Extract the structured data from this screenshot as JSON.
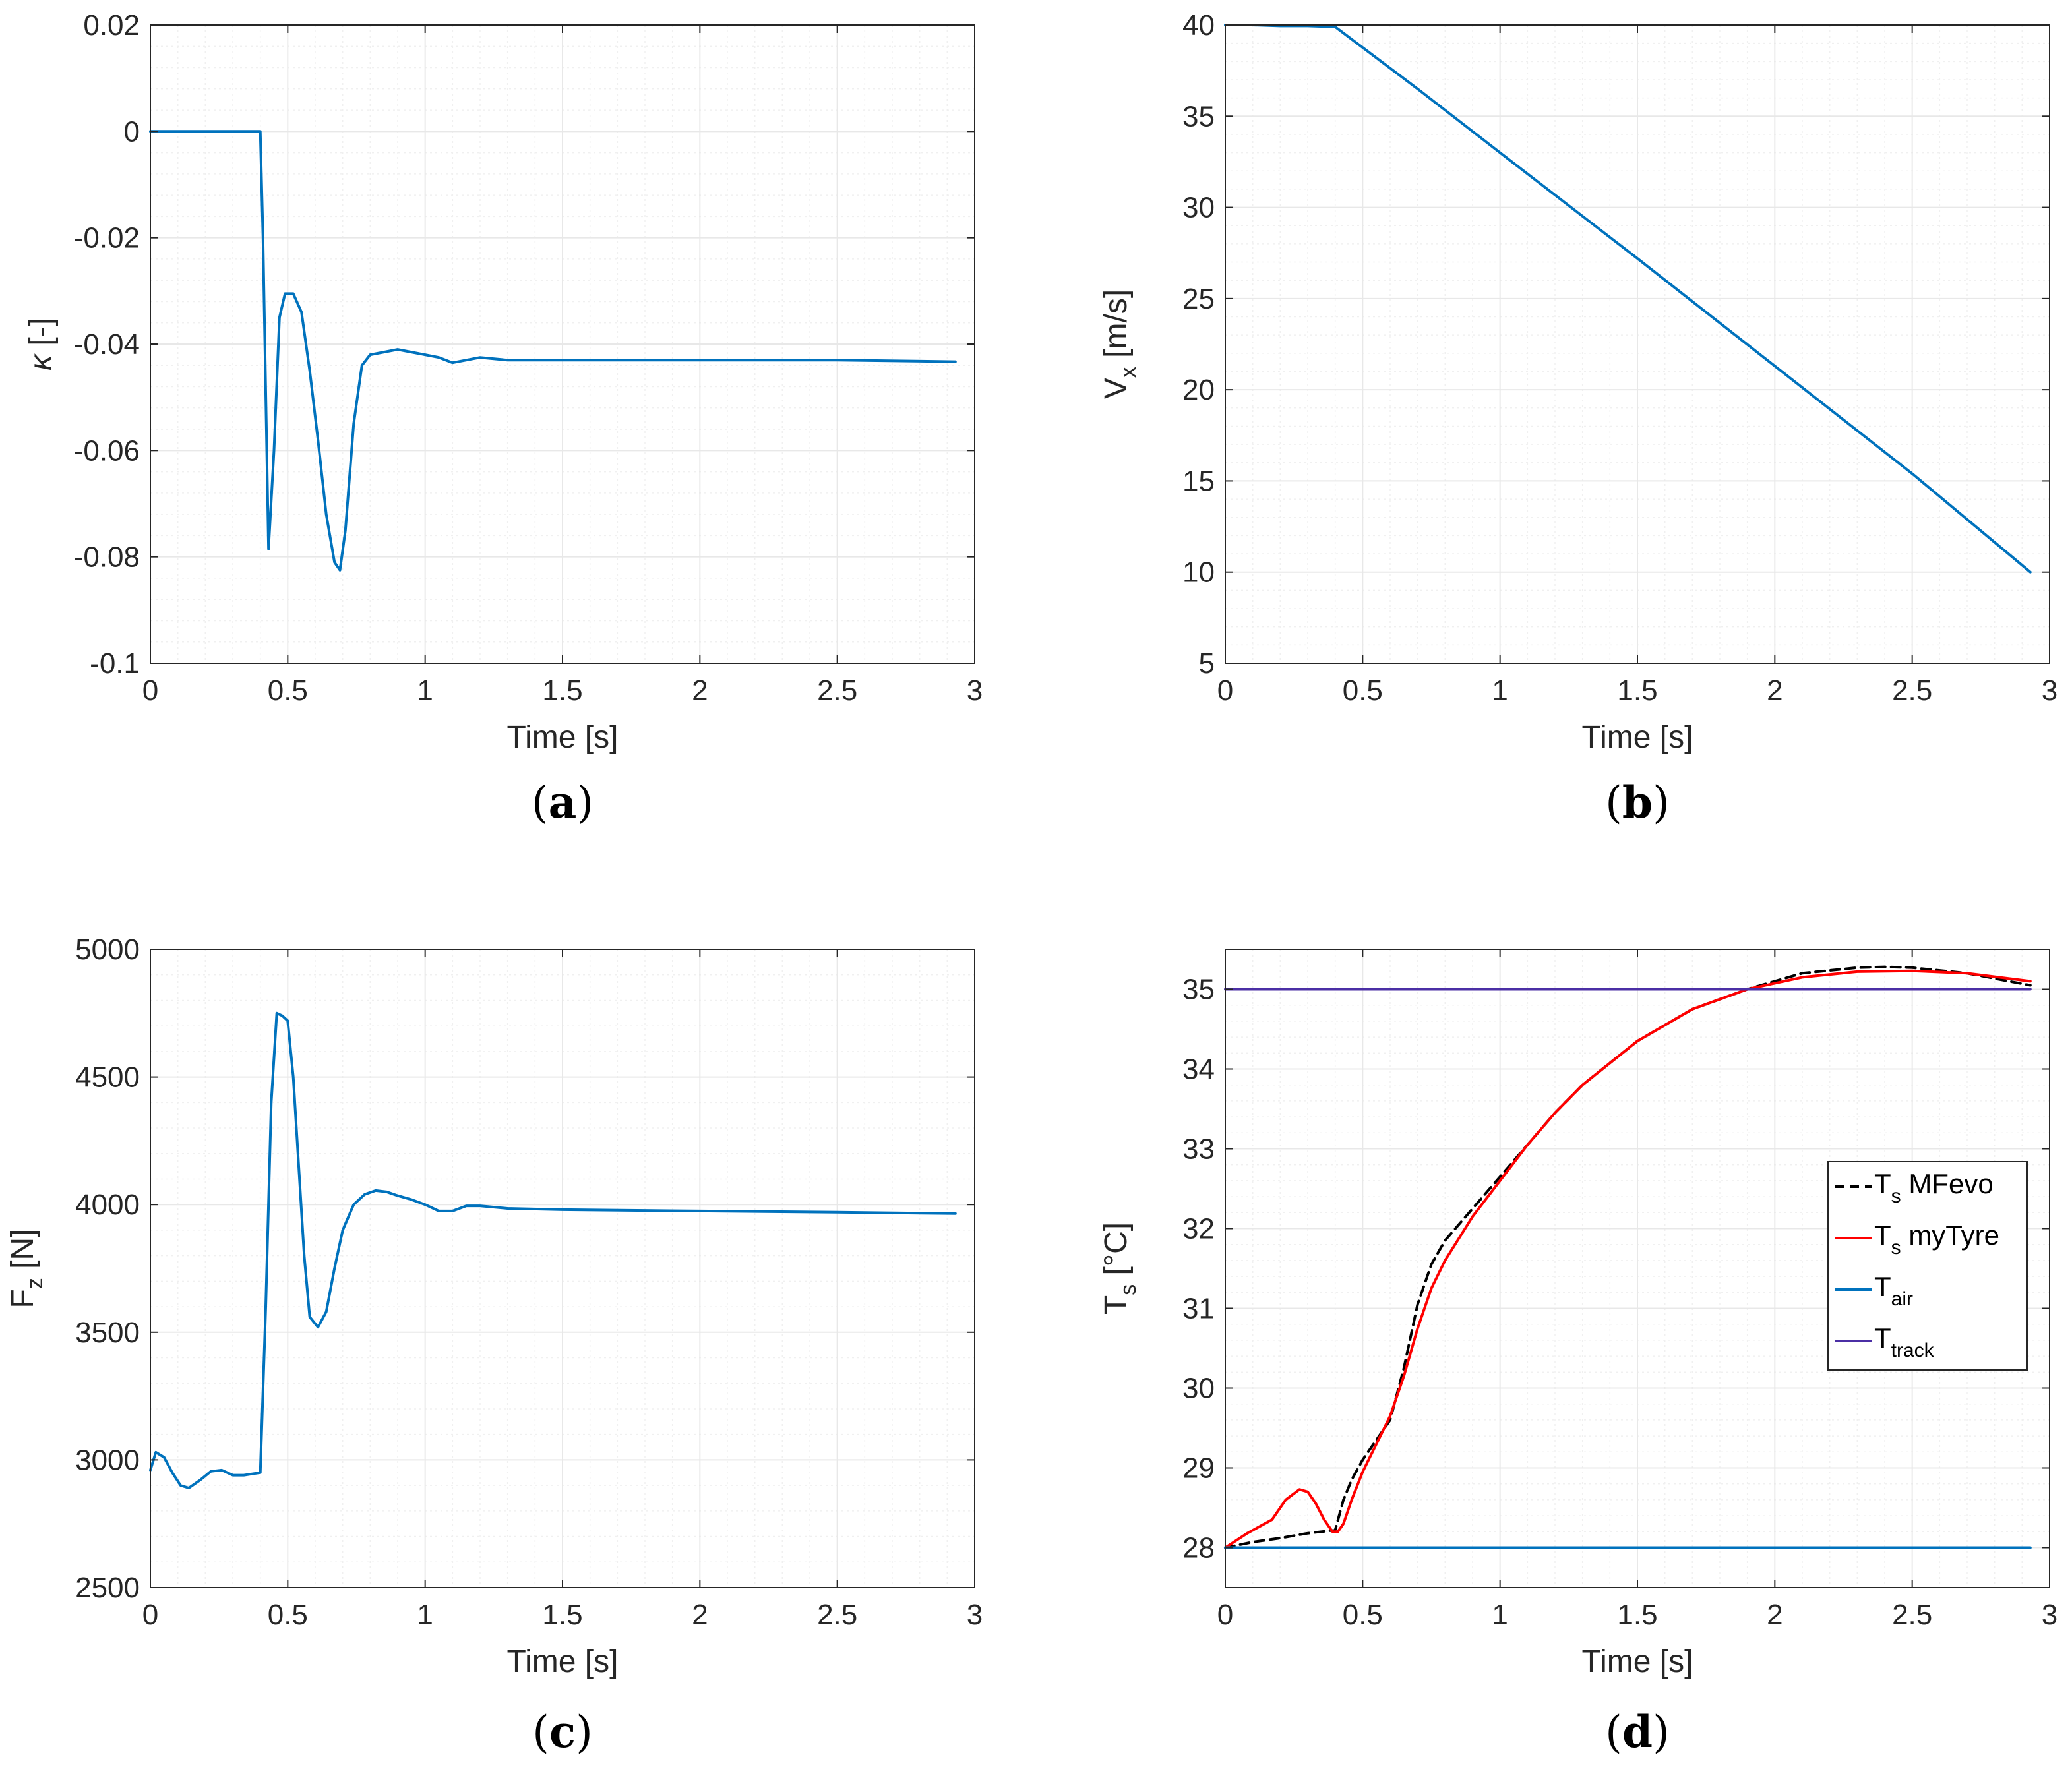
{
  "colors": {
    "blue": "#0072bd",
    "red": "#ff0000",
    "black": "#000000",
    "navy": "#4b2fa5",
    "grid": "#e8e8e8",
    "minorGrid": "#f0f0f0",
    "axis": "#262626"
  },
  "chart_data": [
    {
      "id": "a",
      "type": "line",
      "caption": "a",
      "xlabel": "Time [s]",
      "ylabel": {
        "main": "κ",
        "sub": "",
        "rest": " [-]"
      },
      "xlim": [
        0,
        3
      ],
      "ylim": [
        -0.1,
        0.02
      ],
      "xticks": [
        0,
        0.5,
        1,
        1.5,
        2,
        2.5,
        3
      ],
      "xtick_labels": [
        "0",
        "0.5",
        "1",
        "1.5",
        "2",
        "2.5",
        "3"
      ],
      "yticks": [
        -0.1,
        -0.08,
        -0.06,
        -0.04,
        -0.02,
        0,
        0.02
      ],
      "ytick_labels": [
        "-0.1",
        "-0.08",
        "-0.06",
        "-0.04",
        "-0.02",
        "0",
        "0.02"
      ],
      "series": [
        {
          "name": "κ",
          "color": "#0072bd",
          "dash": "",
          "x": [
            0,
            0.39,
            0.4,
            0.41,
            0.43,
            0.45,
            0.47,
            0.49,
            0.52,
            0.55,
            0.58,
            0.61,
            0.64,
            0.67,
            0.69,
            0.71,
            0.74,
            0.77,
            0.8,
            0.85,
            0.9,
            0.95,
            1.0,
            1.05,
            1.1,
            1.15,
            1.2,
            1.3,
            1.5,
            2.0,
            2.5,
            2.93
          ],
          "y": [
            0,
            0,
            0,
            -0.02,
            -0.0785,
            -0.06,
            -0.035,
            -0.0305,
            -0.0305,
            -0.034,
            -0.045,
            -0.058,
            -0.072,
            -0.081,
            -0.0825,
            -0.075,
            -0.055,
            -0.044,
            -0.042,
            -0.0415,
            -0.041,
            -0.0415,
            -0.042,
            -0.0425,
            -0.0435,
            -0.043,
            -0.0425,
            -0.043,
            -0.043,
            -0.043,
            -0.043,
            -0.0433
          ]
        }
      ]
    },
    {
      "id": "b",
      "type": "line",
      "caption": "b",
      "xlabel": "Time [s]",
      "ylabel": {
        "main": "V",
        "sub": "x",
        "rest": " [m/s]"
      },
      "xlim": [
        0,
        3
      ],
      "ylim": [
        5,
        40
      ],
      "xticks": [
        0,
        0.5,
        1,
        1.5,
        2,
        2.5,
        3
      ],
      "xtick_labels": [
        "0",
        "0.5",
        "1",
        "1.5",
        "2",
        "2.5",
        "3"
      ],
      "yticks": [
        5,
        10,
        15,
        20,
        25,
        30,
        35,
        40
      ],
      "ytick_labels": [
        "5",
        "10",
        "15",
        "20",
        "25",
        "30",
        "35",
        "40"
      ],
      "series": [
        {
          "name": "Vx",
          "color": "#0072bd",
          "dash": "",
          "x": [
            0,
            0.1,
            0.2,
            0.3,
            0.4,
            0.7,
            1.0,
            1.5,
            2.0,
            2.5,
            2.93
          ],
          "y": [
            40,
            40,
            39.95,
            39.95,
            39.9,
            36.5,
            33,
            27.2,
            21.3,
            15.4,
            10
          ]
        }
      ]
    },
    {
      "id": "c",
      "type": "line",
      "caption": "c",
      "xlabel": "Time [s]",
      "ylabel": {
        "main": "F",
        "sub": "z",
        "rest": " [N]"
      },
      "xlim": [
        0,
        3
      ],
      "ylim": [
        2500,
        5000
      ],
      "xticks": [
        0,
        0.5,
        1,
        1.5,
        2,
        2.5,
        3
      ],
      "xtick_labels": [
        "0",
        "0.5",
        "1",
        "1.5",
        "2",
        "2.5",
        "3"
      ],
      "yticks": [
        2500,
        3000,
        3500,
        4000,
        4500,
        5000
      ],
      "ytick_labels": [
        "2500",
        "3000",
        "3500",
        "4000",
        "4500",
        "5000"
      ],
      "series": [
        {
          "name": "Fz",
          "color": "#0072bd",
          "dash": "",
          "x": [
            0,
            0.02,
            0.05,
            0.08,
            0.11,
            0.14,
            0.18,
            0.22,
            0.26,
            0.3,
            0.34,
            0.37,
            0.4,
            0.42,
            0.44,
            0.46,
            0.48,
            0.5,
            0.52,
            0.54,
            0.56,
            0.58,
            0.61,
            0.64,
            0.67,
            0.7,
            0.74,
            0.78,
            0.82,
            0.86,
            0.9,
            0.95,
            1.0,
            1.05,
            1.1,
            1.15,
            1.2,
            1.3,
            1.5,
            2.0,
            2.5,
            2.93
          ],
          "y": [
            2960,
            3030,
            3010,
            2950,
            2900,
            2890,
            2920,
            2955,
            2960,
            2940,
            2940,
            2945,
            2950,
            3600,
            4400,
            4750,
            4740,
            4720,
            4500,
            4150,
            3800,
            3560,
            3520,
            3580,
            3750,
            3900,
            4000,
            4040,
            4055,
            4050,
            4035,
            4020,
            4000,
            3975,
            3975,
            3995,
            3995,
            3985,
            3980,
            3975,
            3970,
            3965
          ]
        }
      ]
    },
    {
      "id": "d",
      "type": "line",
      "caption": "d",
      "xlabel": "Time [s]",
      "ylabel": {
        "main": "T",
        "sub": "s",
        "rest": " [°C]"
      },
      "xlim": [
        0,
        3
      ],
      "ylim": [
        27.5,
        35.5
      ],
      "xticks": [
        0,
        0.5,
        1,
        1.5,
        2,
        2.5,
        3
      ],
      "xtick_labels": [
        "0",
        "0.5",
        "1",
        "1.5",
        "2",
        "2.5",
        "3"
      ],
      "yticks": [
        28,
        29,
        30,
        31,
        32,
        33,
        34,
        35
      ],
      "ytick_labels": [
        "28",
        "29",
        "30",
        "31",
        "32",
        "33",
        "34",
        "35"
      ],
      "legend": {
        "position": "center-right",
        "entries": [
          {
            "main": "T",
            "sub": "s",
            "rest": " MFevo"
          },
          {
            "main": "T",
            "sub": "s",
            "rest": " myTyre"
          },
          {
            "main": "T",
            "sub": "air",
            "rest": ""
          },
          {
            "main": "T",
            "sub": "track",
            "rest": ""
          }
        ]
      },
      "series": [
        {
          "name": "Ts MFevo",
          "color": "#000000",
          "dash": "14 9",
          "x": [
            0,
            0.1,
            0.2,
            0.3,
            0.4,
            0.43,
            0.46,
            0.5,
            0.55,
            0.6,
            0.65,
            0.7,
            0.75,
            0.8,
            0.9,
            1.0,
            1.1,
            1.2,
            1.3,
            1.5,
            1.7,
            1.9,
            2.1,
            2.3,
            2.4,
            2.5,
            2.7,
            2.93
          ],
          "y": [
            28,
            28.07,
            28.12,
            28.18,
            28.22,
            28.6,
            28.85,
            29.1,
            29.35,
            29.6,
            30.25,
            31.05,
            31.55,
            31.85,
            32.25,
            32.65,
            33.05,
            33.45,
            33.8,
            34.35,
            34.75,
            35.0,
            35.2,
            35.27,
            35.28,
            35.27,
            35.2,
            35.05
          ]
        },
        {
          "name": "Ts myTyre",
          "color": "#ff0000",
          "dash": "",
          "x": [
            0,
            0.08,
            0.17,
            0.22,
            0.27,
            0.3,
            0.33,
            0.36,
            0.39,
            0.41,
            0.43,
            0.46,
            0.5,
            0.55,
            0.6,
            0.65,
            0.7,
            0.75,
            0.8,
            0.9,
            1.0,
            1.1,
            1.2,
            1.3,
            1.5,
            1.7,
            1.9,
            2.1,
            2.3,
            2.5,
            2.7,
            2.93
          ],
          "y": [
            28,
            28.18,
            28.35,
            28.6,
            28.73,
            28.7,
            28.55,
            28.35,
            28.2,
            28.2,
            28.3,
            28.6,
            28.95,
            29.3,
            29.65,
            30.15,
            30.75,
            31.25,
            31.6,
            32.15,
            32.6,
            33.05,
            33.45,
            33.8,
            34.35,
            34.75,
            35.0,
            35.15,
            35.22,
            35.23,
            35.2,
            35.1
          ]
        },
        {
          "name": "Tair",
          "color": "#0072bd",
          "dash": "",
          "x": [
            0,
            2.93
          ],
          "y": [
            28,
            28
          ]
        },
        {
          "name": "Ttrack",
          "color": "#4b2fa5",
          "dash": "",
          "x": [
            0,
            2.93
          ],
          "y": [
            35,
            35
          ]
        }
      ]
    }
  ]
}
